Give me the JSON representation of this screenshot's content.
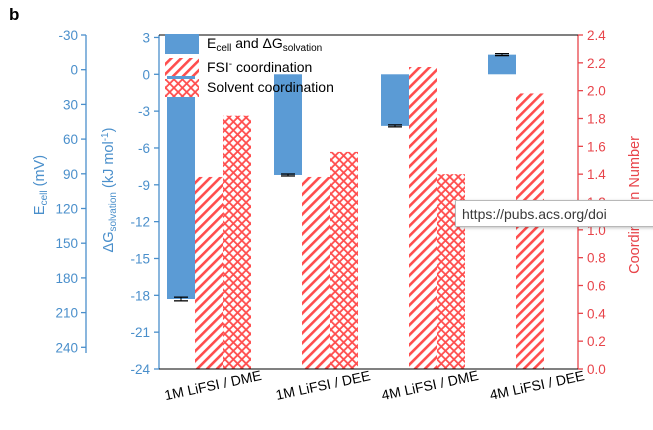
{
  "panel_letter": "b",
  "tooltip": {
    "text": "https://pubs.acs.org/doi"
  },
  "colors": {
    "blue": "#5b9bd5",
    "blue_axis": "#4a8fcb",
    "red": "#ff4d4d",
    "red_axis": "#e8444a"
  },
  "chart_data": {
    "type": "bar",
    "categories": [
      "1M LiFSI / DME",
      "1M LiFSI / DEE",
      "4M LiFSI / DME",
      "4M LiFSI / DEE"
    ],
    "series": [
      {
        "name": "E_cell and ΔG_solvation",
        "axis": "left",
        "values": [
          -18.3,
          -8.2,
          -4.2,
          1.6
        ],
        "errors": [
          0.15,
          0.08,
          0.08,
          0.08
        ]
      },
      {
        "name": "FSI⁻ coordination",
        "axis": "right",
        "pattern": "diagonal",
        "values": [
          1.38,
          1.38,
          2.17,
          1.98
        ]
      },
      {
        "name": "Solvent coordination",
        "axis": "right",
        "pattern": "crosshatch",
        "values": [
          1.82,
          1.56,
          1.4,
          0.0
        ]
      }
    ],
    "legend_labels": {
      "s1_main": "E",
      "s1_sub1": "cell",
      "s1_mid": " and ΔG",
      "s1_sub2": "solvation",
      "s2_main": "FSI",
      "s2_sup": "-",
      "s2_rest": " coordination",
      "s3": "Solvent coordination"
    },
    "legend_position": "top-left",
    "axes": {
      "ecell": {
        "label_main": "E",
        "label_sub": "cell",
        "label_rest": " (mV)",
        "ticks": [
          "-30",
          "0",
          "30",
          "60",
          "90",
          "120",
          "150",
          "180",
          "210",
          "240"
        ]
      },
      "dg": {
        "label_main": "ΔG",
        "label_sub": "solvation",
        "label_rest": " (kJ mol",
        "label_sup": "-1",
        "label_end": ")",
        "ylim": [
          -24,
          3.2
        ],
        "ticks": [
          "3",
          "0",
          "-3",
          "-6",
          "-9",
          "-12",
          "-15",
          "-18",
          "-21",
          "-24"
        ]
      },
      "coord": {
        "label": "Coordination Number",
        "ylim": [
          0,
          2.4
        ],
        "ticks": [
          "0.0",
          "0.2",
          "0.4",
          "0.6",
          "0.8",
          "1.0",
          "1.2",
          "1.4",
          "1.6",
          "1.8",
          "2.0",
          "2.2",
          "2.4"
        ]
      }
    }
  }
}
